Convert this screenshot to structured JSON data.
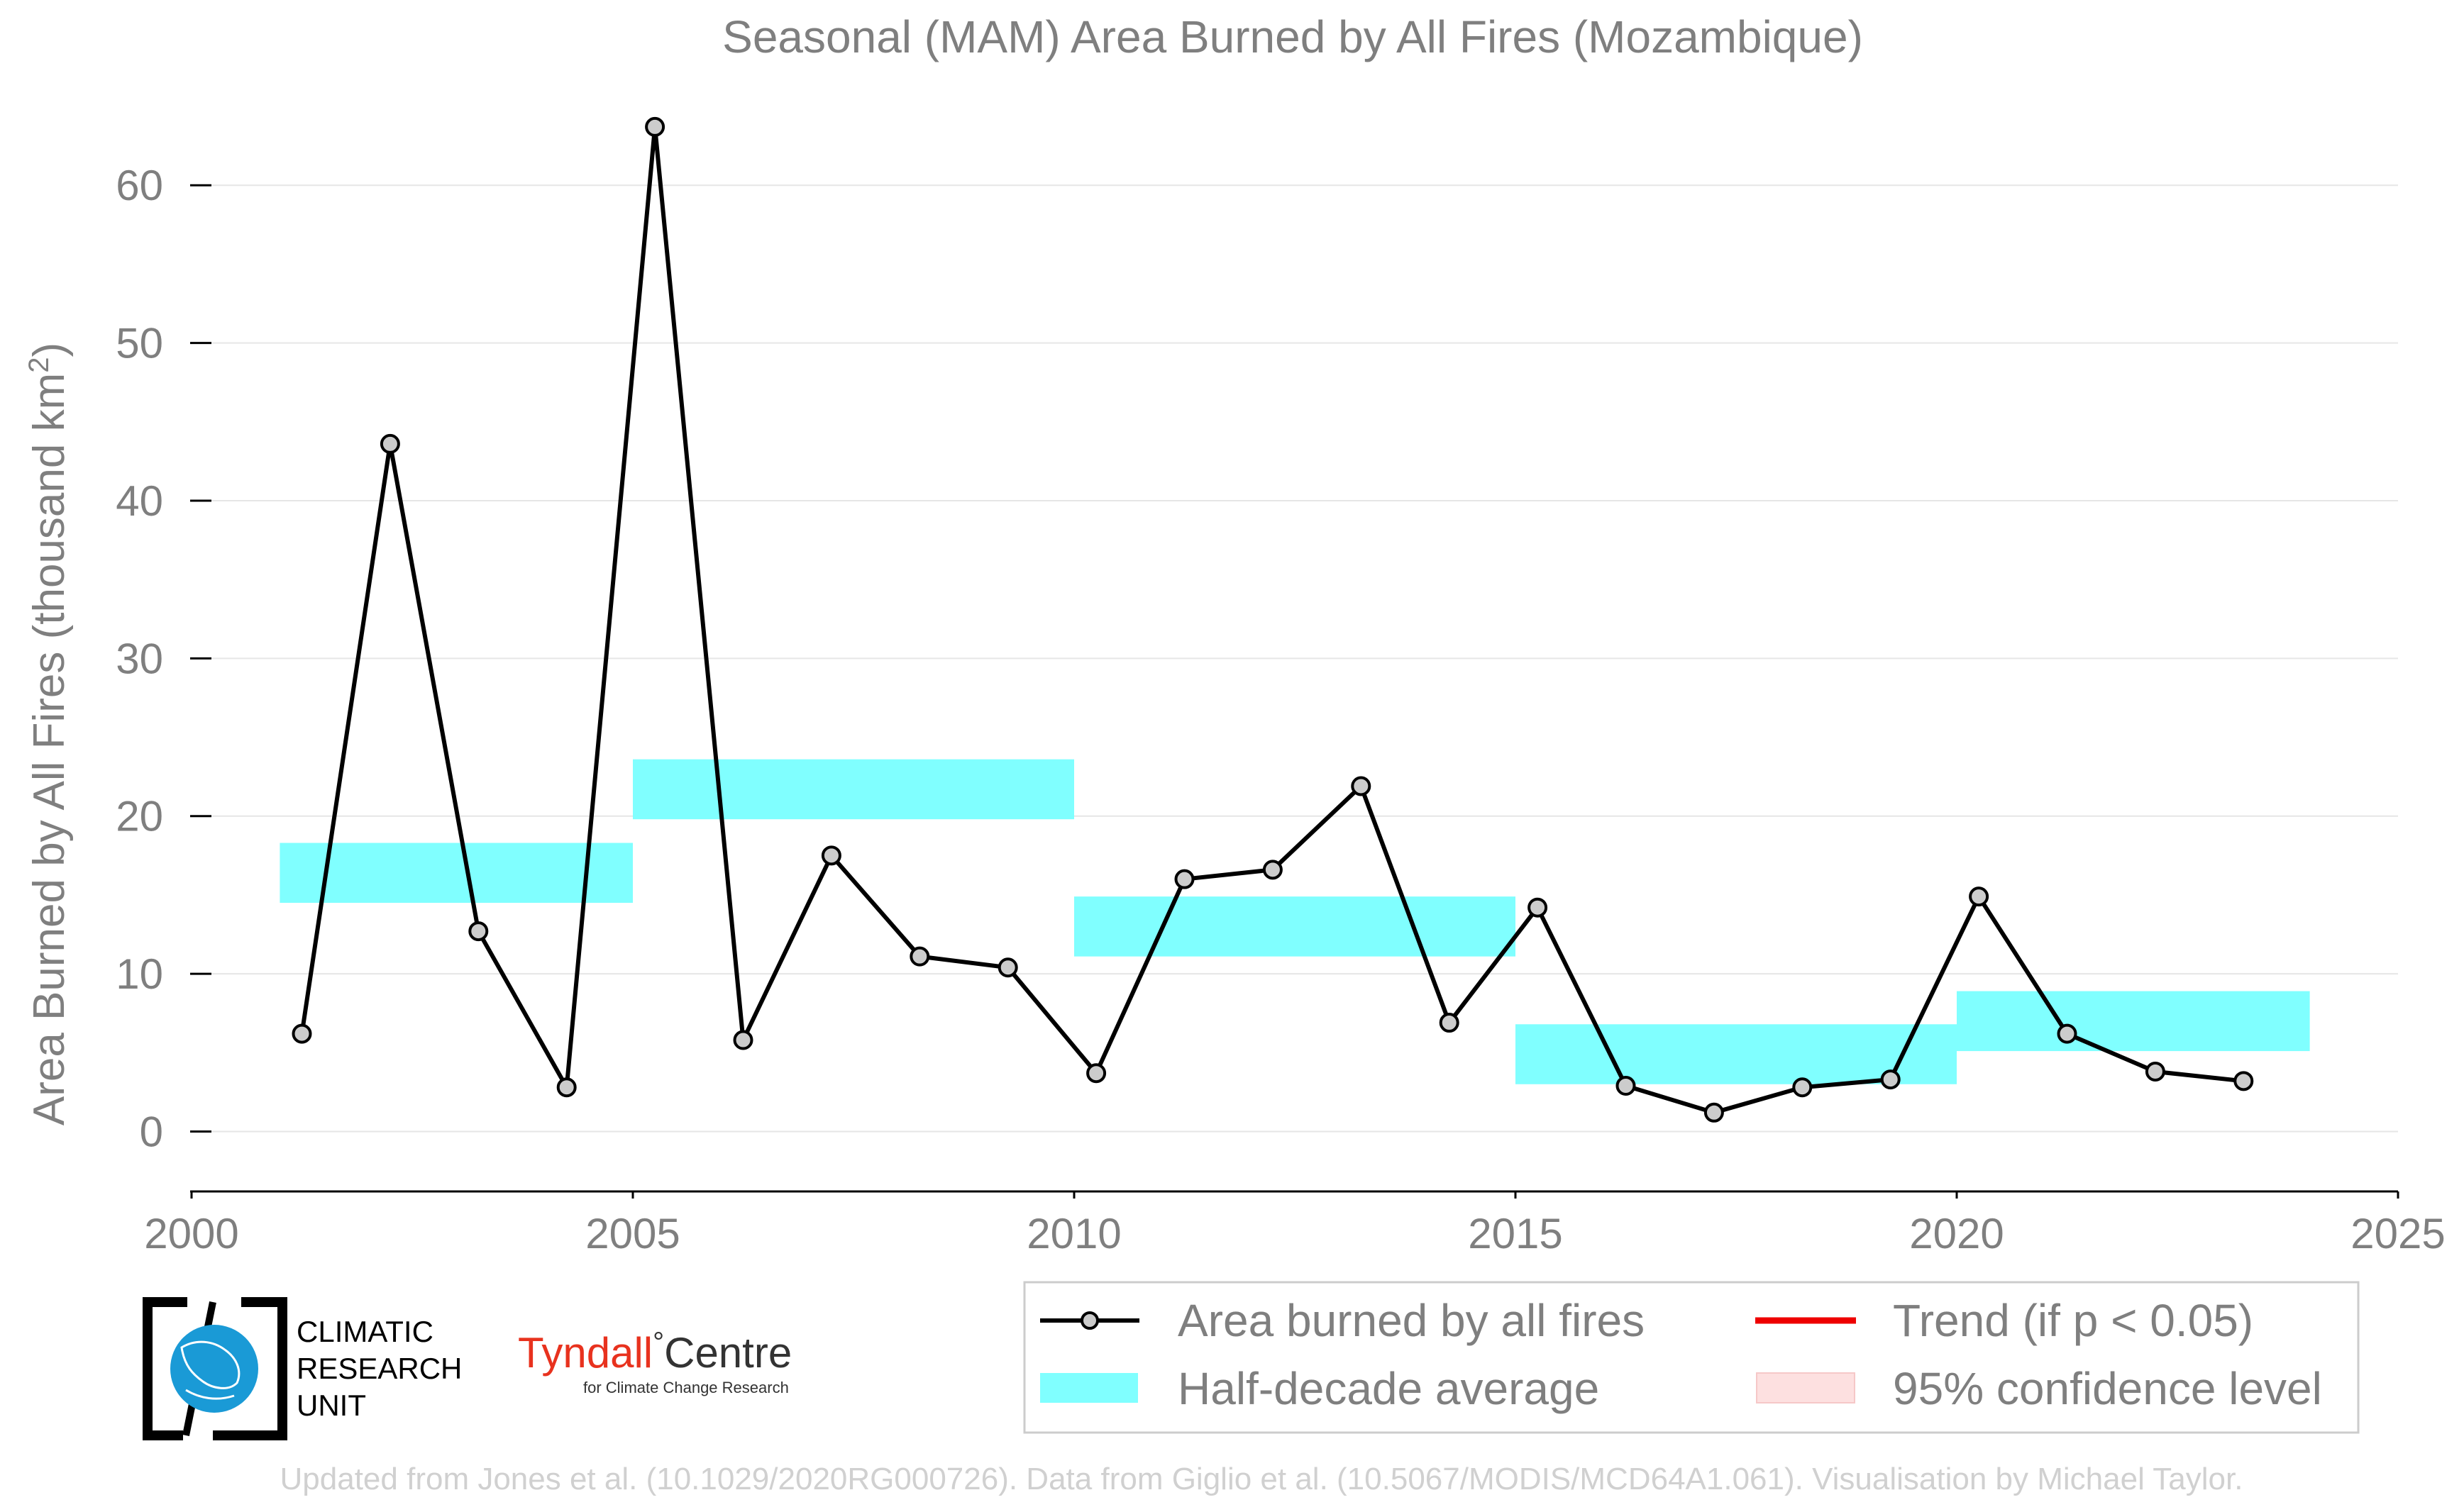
{
  "chart_data": {
    "type": "line",
    "title": "Seasonal (MAM) Area Burned by All Fires (Mozambique)",
    "xlabel": "",
    "ylabel": "Area Burned by All Fires (thousand km",
    "ylabel_superscript": "2",
    "ylabel_close": ")",
    "xlim": [
      2000,
      2025
    ],
    "ylim": [
      -3.8,
      65
    ],
    "x_ticks": [
      2000,
      2005,
      2010,
      2015,
      2020,
      2025
    ],
    "y_ticks": [
      0,
      10,
      20,
      30,
      40,
      50,
      60
    ],
    "grid": "horizontal",
    "series": [
      {
        "name": "Area burned by all fires",
        "color": "#000000",
        "marker_fill": "#cccccc",
        "x": [
          2001.25,
          2002.25,
          2003.25,
          2004.25,
          2005.25,
          2006.25,
          2007.25,
          2008.25,
          2009.25,
          2010.25,
          2011.25,
          2012.25,
          2013.25,
          2014.25,
          2015.25,
          2016.25,
          2017.25,
          2018.25,
          2019.25,
          2020.25,
          2021.25,
          2022.25,
          2023.25
        ],
        "y": [
          6.2,
          43.6,
          12.7,
          2.8,
          63.7,
          5.8,
          17.5,
          11.1,
          10.4,
          3.7,
          16.0,
          16.6,
          21.9,
          6.9,
          14.2,
          2.9,
          1.2,
          2.8,
          3.3,
          14.9,
          6.2,
          3.8,
          3.2
        ]
      }
    ],
    "half_decade_averages": {
      "name": "Half-decade average",
      "color": "#80ffff",
      "segments": [
        {
          "x_start": 2001,
          "x_end": 2005,
          "value": 16.4
        },
        {
          "x_start": 2005,
          "x_end": 2010,
          "value": 21.7
        },
        {
          "x_start": 2010,
          "x_end": 2015,
          "value": 13.0
        },
        {
          "x_start": 2015,
          "x_end": 2020,
          "value": 4.9
        },
        {
          "x_start": 2020,
          "x_end": 2024,
          "value": 7.0
        }
      ]
    },
    "legend": {
      "placement": "bottom-right",
      "entries": [
        {
          "label": "Area burned by all fires",
          "kind": "line-marker",
          "color": "#000000"
        },
        {
          "label": "Trend (if p < 0.05)",
          "kind": "line",
          "color": "#ee0000"
        },
        {
          "label": "Half-decade average",
          "kind": "band",
          "color": "#80ffff"
        },
        {
          "label": "95% confidence level",
          "kind": "band",
          "color": "#fde0e0"
        }
      ]
    }
  },
  "logos": {
    "cru": {
      "line1": "CLIMATIC",
      "line2": "RESEARCH",
      "line3": "UNIT",
      "color": "#1a9ad6"
    },
    "tyndall": {
      "main_left": "Tyndall",
      "degree": "°",
      "main_right": "Centre",
      "sub": "for Climate Change Research",
      "left_color": "#e8321e",
      "right_color": "#333333"
    }
  },
  "credit": "Updated from Jones et al. (10.1029/2020RG000726). Data from Giglio et al. (10.5067/MODIS/MCD64A1.061). Visualisation by Michael Taylor."
}
